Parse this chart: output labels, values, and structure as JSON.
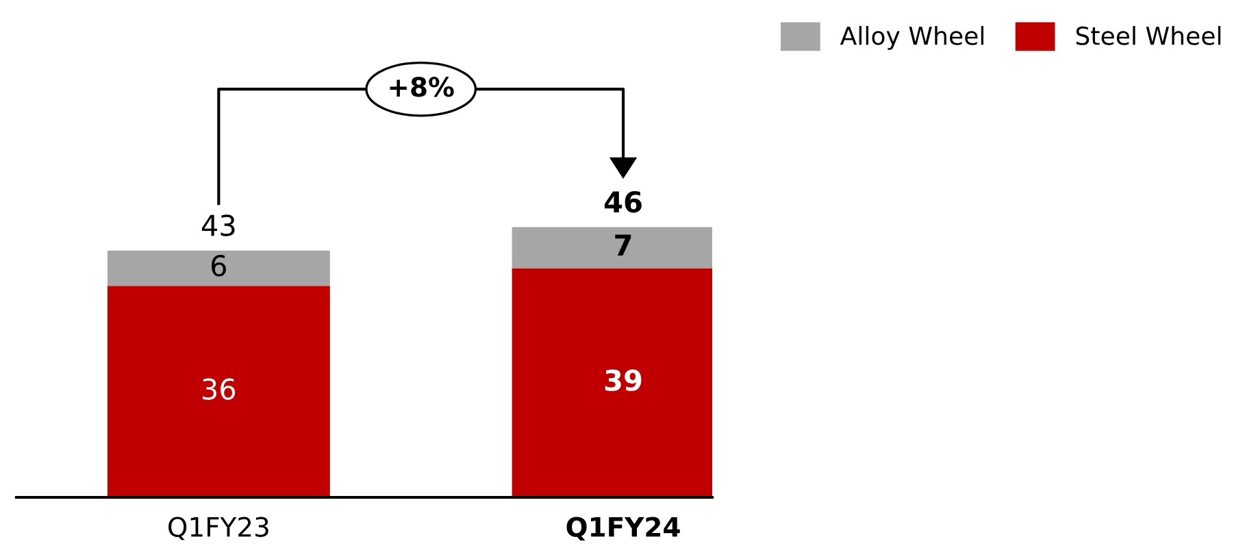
{
  "chart_data": {
    "type": "bar",
    "stacked": true,
    "categories": [
      "Q1FY23",
      "Q1FY24"
    ],
    "series": [
      {
        "name": "Steel Wheel",
        "color": "#c00000",
        "values": [
          36,
          39
        ]
      },
      {
        "name": "Alloy Wheel",
        "color": "#a6a6a6",
        "values": [
          6,
          7
        ]
      }
    ],
    "totals": [
      "43",
      "46"
    ],
    "data_labels": true,
    "annotations": [
      "+8%"
    ],
    "legend": "top right"
  }
}
